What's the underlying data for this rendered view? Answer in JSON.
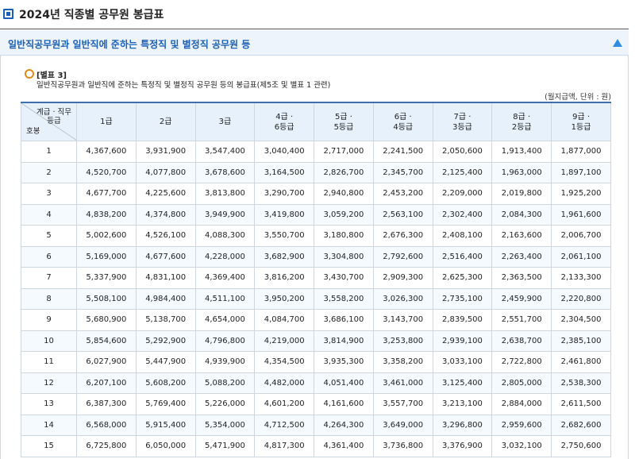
{
  "page_title": "2024년 직종별 공무원 봉급표",
  "section": {
    "title": "일반직공무원과 일반직에 준하는 특정직 및 별정직 공무원 등"
  },
  "table": {
    "label": "[별표 3]",
    "caption": "일반직공무원과 일반직에 준하는 특정직 및 별정직 공무원 등의 봉급표(제5조 및 별표 1 관련)",
    "unit_note": "(월지급액, 단위 : 원)",
    "corner_grade_line1": "계급 · 직무",
    "corner_grade_line2": "등급",
    "corner_step": "호봉",
    "columns": [
      {
        "line1": "1급",
        "line2": ""
      },
      {
        "line1": "2급",
        "line2": ""
      },
      {
        "line1": "3급",
        "line2": ""
      },
      {
        "line1": "4급 ·",
        "line2": "6등급"
      },
      {
        "line1": "5급 ·",
        "line2": "5등급"
      },
      {
        "line1": "6급 ·",
        "line2": "4등급"
      },
      {
        "line1": "7급 ·",
        "line2": "3등급"
      },
      {
        "line1": "8급 ·",
        "line2": "2등급"
      },
      {
        "line1": "9급 ·",
        "line2": "1등급"
      }
    ],
    "rows": [
      {
        "step": "1",
        "values": [
          "4,367,600",
          "3,931,900",
          "3,547,400",
          "3,040,400",
          "2,717,000",
          "2,241,500",
          "2,050,600",
          "1,913,400",
          "1,877,000"
        ]
      },
      {
        "step": "2",
        "values": [
          "4,520,700",
          "4,077,800",
          "3,678,600",
          "3,164,500",
          "2,826,700",
          "2,345,700",
          "2,125,400",
          "1,963,000",
          "1,897,100"
        ]
      },
      {
        "step": "3",
        "values": [
          "4,677,700",
          "4,225,600",
          "3,813,800",
          "3,290,700",
          "2,940,800",
          "2,453,200",
          "2,209,000",
          "2,019,800",
          "1,925,200"
        ]
      },
      {
        "step": "4",
        "values": [
          "4,838,200",
          "4,374,800",
          "3,949,900",
          "3,419,800",
          "3,059,200",
          "2,563,100",
          "2,302,400",
          "2,084,300",
          "1,961,600"
        ]
      },
      {
        "step": "5",
        "values": [
          "5,002,600",
          "4,526,100",
          "4,088,300",
          "3,550,700",
          "3,180,800",
          "2,676,300",
          "2,408,100",
          "2,163,600",
          "2,006,700"
        ]
      },
      {
        "step": "6",
        "values": [
          "5,169,000",
          "4,677,600",
          "4,228,000",
          "3,682,900",
          "3,304,800",
          "2,792,600",
          "2,516,400",
          "2,263,400",
          "2,061,100"
        ]
      },
      {
        "step": "7",
        "values": [
          "5,337,900",
          "4,831,100",
          "4,369,400",
          "3,816,200",
          "3,430,700",
          "2,909,300",
          "2,625,300",
          "2,363,500",
          "2,133,300"
        ]
      },
      {
        "step": "8",
        "values": [
          "5,508,100",
          "4,984,400",
          "4,511,100",
          "3,950,200",
          "3,558,200",
          "3,026,300",
          "2,735,100",
          "2,459,900",
          "2,220,800"
        ]
      },
      {
        "step": "9",
        "values": [
          "5,680,900",
          "5,138,700",
          "4,654,000",
          "4,084,700",
          "3,686,100",
          "3,143,700",
          "2,839,500",
          "2,551,700",
          "2,304,500"
        ]
      },
      {
        "step": "10",
        "values": [
          "5,854,600",
          "5,292,900",
          "4,796,800",
          "4,219,000",
          "3,814,900",
          "3,253,800",
          "2,939,100",
          "2,638,700",
          "2,385,100"
        ]
      },
      {
        "step": "11",
        "values": [
          "6,027,900",
          "5,447,900",
          "4,939,900",
          "4,354,500",
          "3,935,300",
          "3,358,200",
          "3,033,100",
          "2,722,800",
          "2,461,800"
        ]
      },
      {
        "step": "12",
        "values": [
          "6,207,100",
          "5,608,200",
          "5,088,200",
          "4,482,000",
          "4,051,400",
          "3,461,000",
          "3,125,400",
          "2,805,000",
          "2,538,300"
        ]
      },
      {
        "step": "13",
        "values": [
          "6,387,300",
          "5,769,400",
          "5,226,000",
          "4,601,200",
          "4,161,600",
          "3,557,700",
          "3,213,100",
          "2,884,000",
          "2,611,500"
        ]
      },
      {
        "step": "14",
        "values": [
          "6,568,000",
          "5,915,400",
          "5,354,000",
          "4,712,500",
          "4,264,300",
          "3,649,000",
          "3,296,800",
          "2,959,600",
          "2,682,600"
        ]
      },
      {
        "step": "15",
        "values": [
          "6,725,800",
          "6,050,000",
          "5,471,900",
          "4,817,300",
          "4,361,400",
          "3,736,800",
          "3,376,900",
          "3,032,100",
          "2,750,600"
        ]
      }
    ]
  },
  "colors": {
    "accent": "#1a5fb4",
    "section_bg": "#eef4fb",
    "header_bg": "#e6f1fb",
    "bullet": "#e08a16"
  }
}
